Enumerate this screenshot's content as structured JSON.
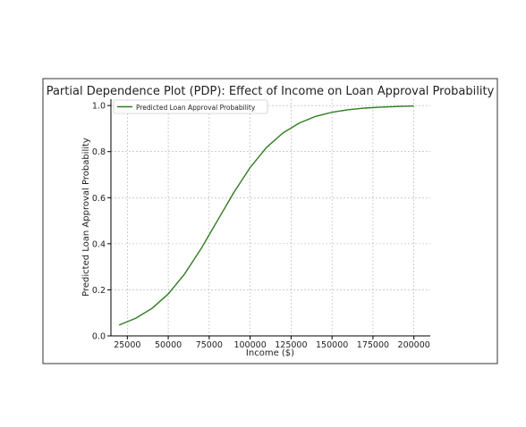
{
  "chart_data": {
    "type": "line",
    "title": "Partial Dependence Plot (PDP): Effect of Income on Loan Approval Probability",
    "xlabel": "Income ($)",
    "ylabel": "Predicted Loan Approval Probability",
    "xlim": [
      15000,
      210000
    ],
    "ylim": [
      0.0,
      1.02
    ],
    "x_ticks": [
      25000,
      50000,
      75000,
      100000,
      125000,
      150000,
      175000,
      200000
    ],
    "y_ticks": [
      0.0,
      0.2,
      0.4,
      0.6,
      0.8,
      1.0
    ],
    "x_tick_labels": [
      "25000",
      "50000",
      "75000",
      "100000",
      "125000",
      "150000",
      "175000",
      "200000"
    ],
    "y_tick_labels": [
      "0.0",
      "0.2",
      "0.4",
      "0.6",
      "0.8",
      "1.0"
    ],
    "grid": true,
    "legend_position": "top-left",
    "series": [
      {
        "name": "Predicted Loan Approval Probability",
        "color": "#2e7d1f",
        "x": [
          20000,
          30000,
          40000,
          50000,
          60000,
          70000,
          80000,
          90000,
          100000,
          110000,
          120000,
          130000,
          140000,
          150000,
          160000,
          170000,
          180000,
          190000,
          200000
        ],
        "y": [
          0.047,
          0.076,
          0.119,
          0.182,
          0.269,
          0.378,
          0.5,
          0.622,
          0.731,
          0.818,
          0.881,
          0.924,
          0.953,
          0.971,
          0.982,
          0.989,
          0.993,
          0.996,
          0.998
        ]
      }
    ]
  }
}
